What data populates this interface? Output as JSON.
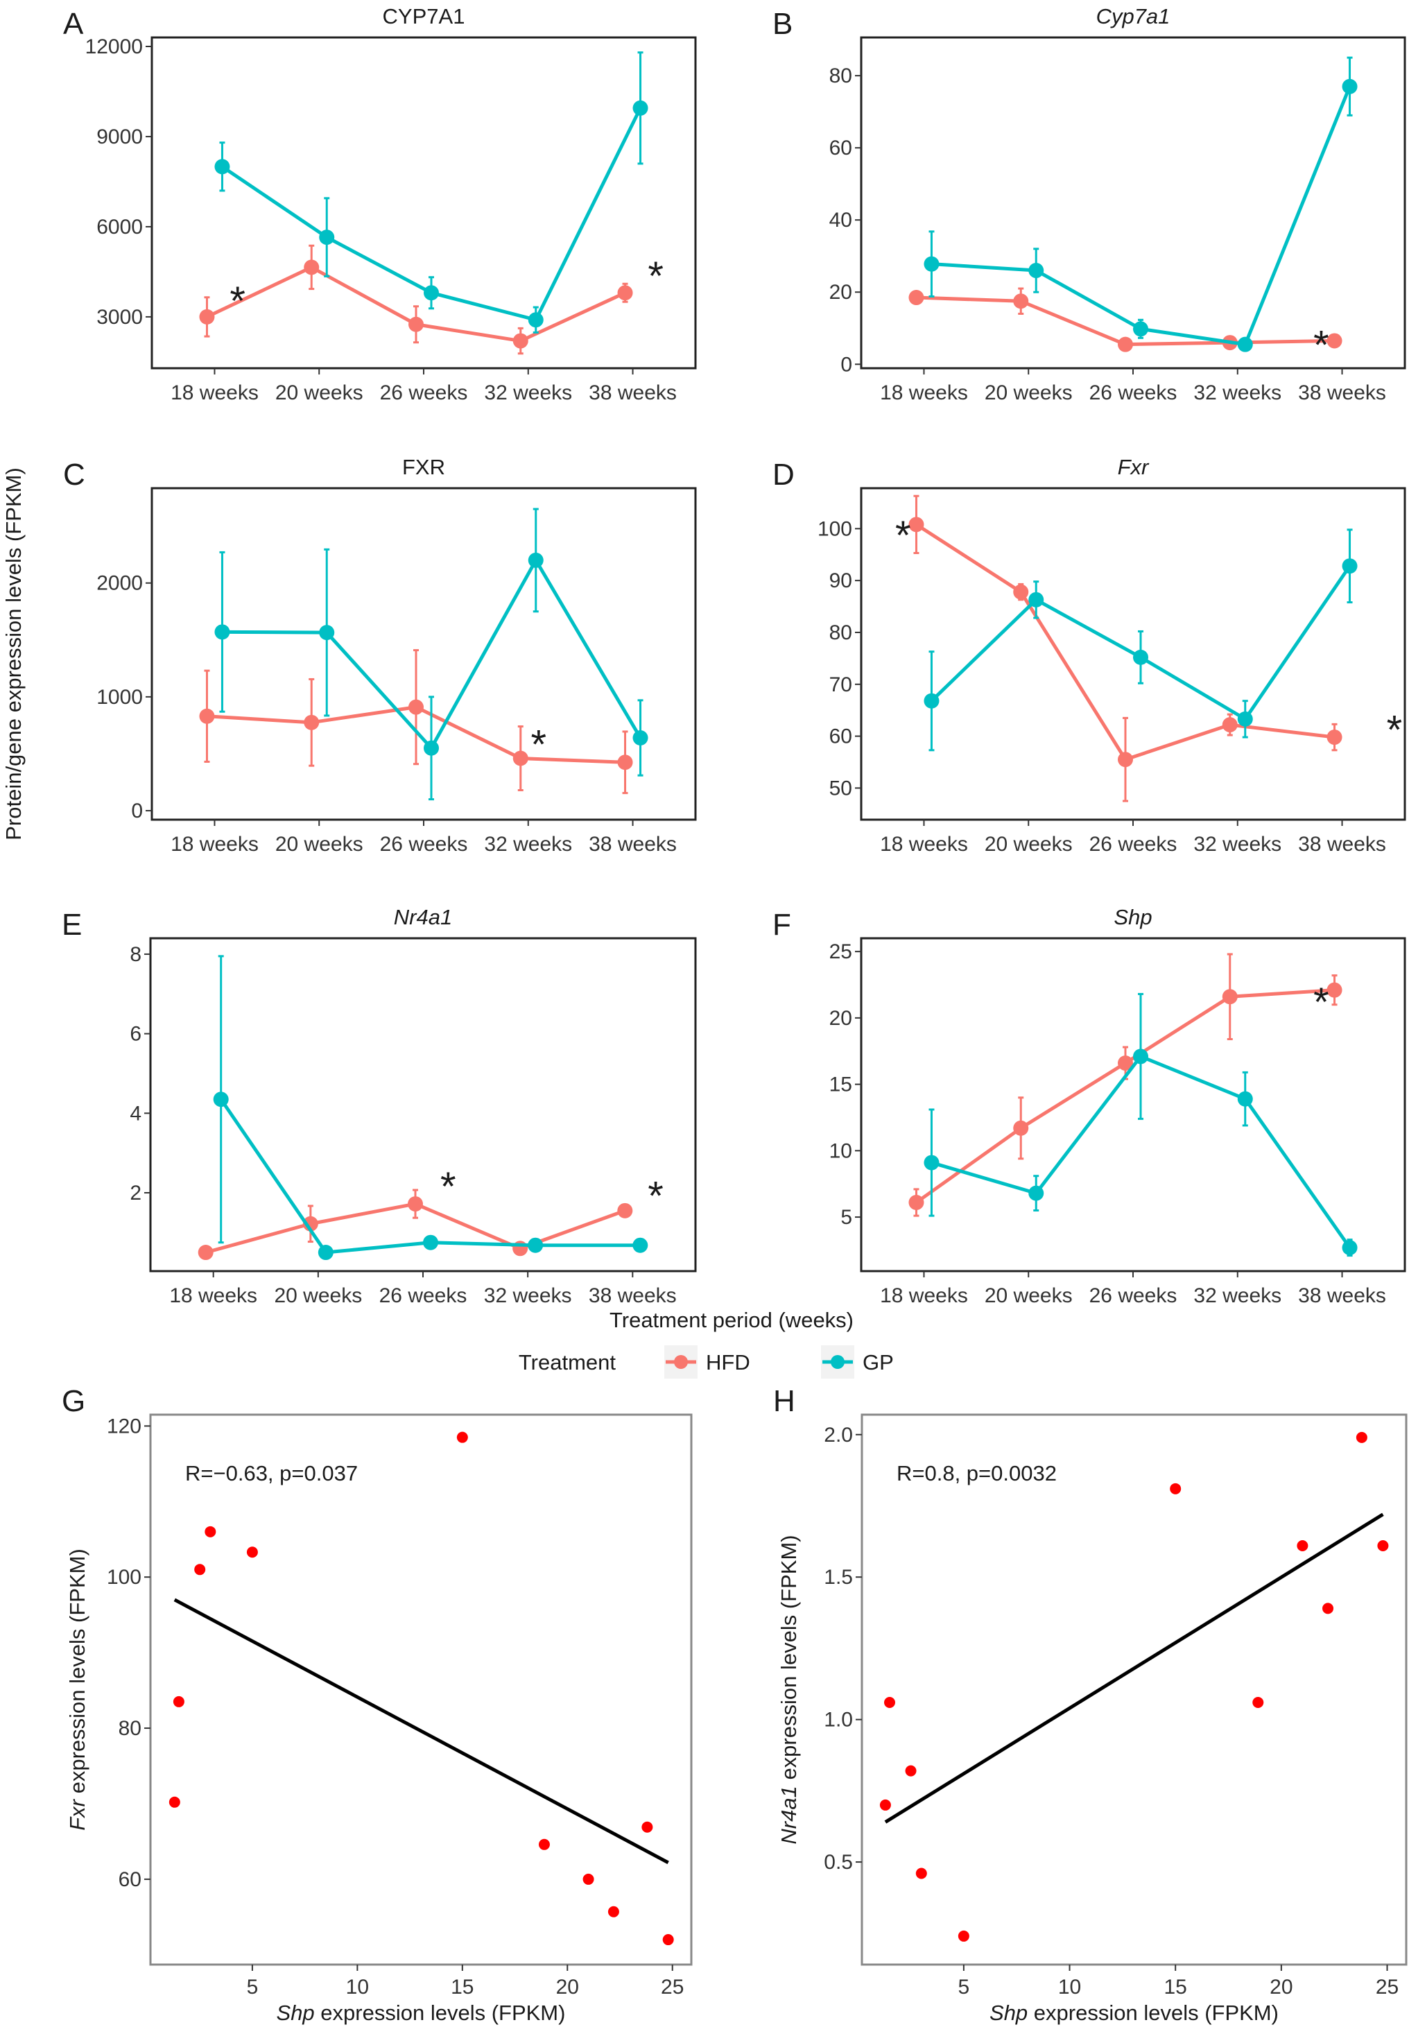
{
  "figure": {
    "shared_ylabel": "Protein/gene expression levels (FPKM)",
    "shared_xlabel": "Treatment period (weeks)",
    "legend": {
      "title": "Treatment",
      "items": [
        {
          "label": "HFD",
          "color": "#F8766D"
        },
        {
          "label": "GP",
          "color": "#00BFC4"
        }
      ]
    }
  },
  "chart_data": [
    {
      "panel": "A",
      "type": "line",
      "title": "CYP7A1",
      "title_italic": false,
      "categories": [
        "18 weeks",
        "20 weeks",
        "26 weeks",
        "32 weeks",
        "38 weeks"
      ],
      "ylim": [
        1290,
        12300
      ],
      "yticks": [
        3000,
        6000,
        9000,
        12000
      ],
      "series": [
        {
          "name": "HFD",
          "values": [
            3000,
            4650,
            2750,
            2200,
            3800
          ],
          "error": [
            650,
            720,
            600,
            420,
            300
          ]
        },
        {
          "name": "GP",
          "values": [
            8000,
            5650,
            3800,
            2900,
            9950
          ],
          "error": [
            800,
            1300,
            520,
            420,
            1850
          ]
        }
      ],
      "annotations": [
        {
          "text": "*",
          "x": 0.22,
          "y": 3670
        },
        {
          "text": "*",
          "x": 4.22,
          "y": 4500
        }
      ]
    },
    {
      "panel": "B",
      "type": "line",
      "title": "Cyp7a1",
      "title_italic": true,
      "categories": [
        "18 weeks",
        "20 weeks",
        "26 weeks",
        "32 weeks",
        "38 weeks"
      ],
      "ylim": [
        -1.1,
        90.6
      ],
      "yticks": [
        0,
        20,
        40,
        60,
        80
      ],
      "series": [
        {
          "name": "HFD",
          "values": [
            18.5,
            17.5,
            5.5,
            6,
            6.5
          ],
          "error": [
            0.8,
            3.5,
            0.8,
            0.6,
            0.6
          ]
        },
        {
          "name": "GP",
          "values": [
            27.8,
            26,
            9.8,
            5.5,
            77
          ],
          "error": [
            9,
            6,
            2.5,
            0.5,
            8
          ]
        }
      ],
      "annotations": [
        {
          "text": "*",
          "x": 3.8,
          "y": 6.5
        }
      ]
    },
    {
      "panel": "C",
      "type": "line",
      "title": "FXR",
      "title_italic": false,
      "categories": [
        "18 weeks",
        "20 weeks",
        "26 weeks",
        "32 weeks",
        "38 weeks"
      ],
      "ylim": [
        -79,
        2833
      ],
      "yticks": [
        0,
        1000,
        2000
      ],
      "series": [
        {
          "name": "HFD",
          "values": [
            830,
            775,
            910,
            460,
            425
          ],
          "error": [
            400,
            380,
            500,
            280,
            270
          ]
        },
        {
          "name": "GP",
          "values": [
            1570,
            1565,
            550,
            2200,
            640
          ],
          "error": [
            700,
            730,
            450,
            450,
            330
          ]
        }
      ],
      "annotations": [
        {
          "text": "*",
          "x": 3.1,
          "y": 620
        }
      ]
    },
    {
      "panel": "D",
      "type": "line",
      "title": "Fxr",
      "title_italic": true,
      "categories": [
        "18 weeks",
        "20 weeks",
        "26 weeks",
        "32 weeks",
        "38 weeks"
      ],
      "ylim": [
        43.9,
        107.8
      ],
      "yticks": [
        50,
        60,
        70,
        80,
        90,
        100
      ],
      "series": [
        {
          "name": "HFD",
          "values": [
            100.8,
            87.8,
            55.5,
            62.2,
            59.8
          ],
          "error": [
            5.5,
            1.5,
            8,
            2,
            2.5
          ]
        },
        {
          "name": "GP",
          "values": [
            66.8,
            86.3,
            75.2,
            63.3,
            92.8
          ],
          "error": [
            9.5,
            3.5,
            5,
            3.5,
            7
          ]
        }
      ],
      "annotations": [
        {
          "text": "*",
          "x": -0.2,
          "y": 99.5
        },
        {
          "text": "*",
          "x": 4.5,
          "y": 62
        }
      ]
    },
    {
      "panel": "E",
      "type": "line",
      "title": "Nr4a1",
      "title_italic": true,
      "categories": [
        "18 weeks",
        "20 weeks",
        "26 weeks",
        "32 weeks",
        "38 weeks"
      ],
      "ylim": [
        0.03,
        8.4
      ],
      "yticks": [
        2,
        4,
        6,
        8
      ],
      "series": [
        {
          "name": "HFD",
          "values": [
            0.5,
            1.22,
            1.72,
            0.6,
            1.55
          ],
          "error": [
            0.05,
            0.45,
            0.35,
            0.05,
            0.06
          ]
        },
        {
          "name": "GP",
          "values": [
            4.35,
            0.5,
            0.75,
            0.68,
            0.68
          ],
          "error": [
            3.6,
            0.05,
            0.06,
            0.05,
            0.05
          ]
        }
      ],
      "annotations": [
        {
          "text": "*",
          "x": 2.24,
          "y": 2.26
        },
        {
          "text": "*",
          "x": 4.22,
          "y": 2.03
        }
      ]
    },
    {
      "panel": "F",
      "type": "line",
      "title": "Shp",
      "title_italic": true,
      "categories": [
        "18 weeks",
        "20 weeks",
        "26 weeks",
        "32 weeks",
        "38 weeks"
      ],
      "ylim": [
        0.93,
        26
      ],
      "yticks": [
        5,
        10,
        15,
        20,
        25
      ],
      "series": [
        {
          "name": "HFD",
          "values": [
            6.1,
            11.7,
            16.6,
            21.6,
            22.1
          ],
          "error": [
            1,
            2.3,
            1.2,
            3.2,
            1.1
          ]
        },
        {
          "name": "GP",
          "values": [
            9.1,
            6.8,
            17.1,
            13.9,
            2.7
          ],
          "error": [
            4,
            1.3,
            4.7,
            2,
            0.6
          ]
        }
      ],
      "annotations": [
        {
          "text": "*",
          "x": 3.8,
          "y": 21.5
        }
      ]
    },
    {
      "panel": "G",
      "type": "scatter",
      "title": "",
      "xlabel": "Shp expression levels (FPKM)",
      "ylabel": "Fxr expression levels (FPKM)",
      "xlim": [
        0.15,
        25.9
      ],
      "ylim": [
        48.7,
        121.5
      ],
      "xticks": [
        5,
        10,
        15,
        20,
        25
      ],
      "yticks": [
        60,
        80,
        100,
        120
      ],
      "annotation": "R=−0.63, p=0.037",
      "points": {
        "x": [
          1.3,
          1.5,
          2.5,
          3.0,
          5.0,
          15.0,
          18.9,
          21.0,
          22.2,
          23.8,
          24.8
        ],
        "y": [
          70.2,
          83.5,
          101.0,
          106.0,
          103.3,
          118.5,
          64.6,
          60.0,
          55.7,
          66.9,
          52.0
        ]
      },
      "point_color": "#FF0000",
      "fit_line": {
        "x": [
          1.3,
          24.8
        ],
        "y": [
          97.0,
          62.2
        ]
      }
    },
    {
      "panel": "H",
      "type": "scatter",
      "title": "",
      "xlabel": "Shp expression levels (FPKM)",
      "ylabel": "Nr4a1 expression levels (FPKM)",
      "xlim": [
        0.19,
        25.9
      ],
      "ylim": [
        0.14,
        2.07
      ],
      "xticks": [
        5,
        10,
        15,
        20,
        25
      ],
      "yticks": [
        0.5,
        1.0,
        1.5,
        2.0
      ],
      "ytick_labels": [
        "0.5",
        "1.0",
        "1.5",
        "2.0"
      ],
      "annotation": "R=0.8, p=0.0032",
      "points": {
        "x": [
          1.3,
          1.5,
          2.5,
          3.0,
          5.0,
          15.0,
          18.9,
          21.0,
          22.2,
          23.8,
          24.8
        ],
        "y": [
          0.7,
          1.06,
          0.82,
          0.46,
          0.24,
          1.81,
          1.06,
          1.61,
          1.39,
          1.99,
          1.61
        ]
      },
      "point_color": "#FF0000",
      "fit_line": {
        "x": [
          1.3,
          24.8
        ],
        "y": [
          0.64,
          1.72
        ]
      }
    }
  ]
}
